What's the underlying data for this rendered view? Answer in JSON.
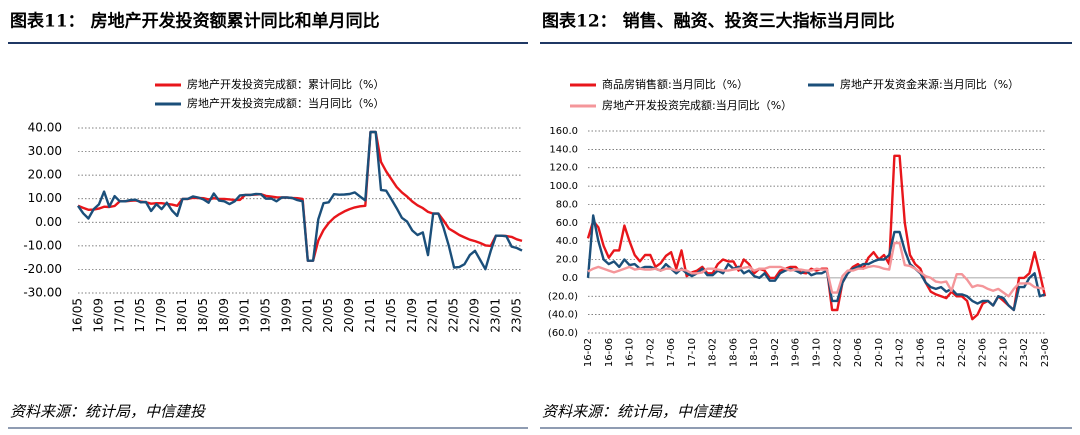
{
  "chart_data": [
    {
      "type": "line",
      "title": "图表11： 房地产开发投资额累计同比和单月同比",
      "source": "资料来源：统计局，中信建投",
      "categories": [
        "16/05",
        null,
        null,
        null,
        "16/09",
        null,
        null,
        null,
        "17/01",
        null,
        null,
        null,
        "17/05",
        null,
        null,
        null,
        "17/09",
        null,
        null,
        null,
        "18/01",
        null,
        null,
        null,
        "18/05",
        null,
        null,
        null,
        "18/09",
        null,
        null,
        null,
        "19/01",
        null,
        null,
        null,
        "19/05",
        null,
        null,
        null,
        "19/09",
        null,
        null,
        null,
        "20/01",
        null,
        null,
        null,
        "20/05",
        null,
        null,
        null,
        "20/09",
        null,
        null,
        null,
        "21/01",
        null,
        null,
        null,
        "21/05",
        null,
        null,
        null,
        "21/09",
        null,
        null,
        null,
        "22/01",
        null,
        null,
        null,
        "22/05",
        null,
        null,
        null,
        "22/09",
        null,
        null,
        null,
        "23/01",
        null,
        null,
        null,
        "23/05",
        null
      ],
      "series": [
        {
          "name": "房地产开发投资完成额：累计同比（%）",
          "color": "#e8161b",
          "values": [
            7.0,
            6.1,
            5.3,
            5.4,
            5.8,
            6.6,
            6.5,
            6.9,
            8.9,
            8.9,
            9.1,
            9.3,
            8.8,
            8.5,
            7.9,
            8.1,
            8.1,
            7.8,
            7.5,
            7.0,
            9.9,
            9.9,
            10.4,
            10.3,
            10.2,
            9.7,
            10.2,
            9.9,
            9.9,
            9.7,
            9.5,
            9.5,
            11.6,
            11.6,
            11.8,
            11.9,
            11.2,
            10.9,
            10.6,
            10.5,
            10.5,
            10.3,
            10.2,
            9.9,
            -16.3,
            -16.3,
            -7.7,
            -3.3,
            -0.3,
            1.9,
            3.4,
            4.6,
            5.6,
            6.3,
            6.8,
            7.0,
            38.3,
            38.3,
            25.6,
            21.6,
            18.3,
            15.0,
            12.7,
            10.9,
            8.8,
            7.2,
            6.0,
            4.4,
            3.7,
            3.7,
            0.7,
            -2.7,
            -4.0,
            -5.4,
            -6.4,
            -7.4,
            -8.0,
            -8.8,
            -9.8,
            -10.0,
            -5.7,
            -5.7,
            -5.8,
            -6.2,
            -7.2,
            -7.9
          ]
        },
        {
          "name": "房地产开发投资完成额：当月同比（%）",
          "color": "#1b4f7a",
          "values": [
            7.0,
            3.8,
            1.6,
            5.6,
            7.6,
            13.0,
            6.6,
            11.1,
            8.9,
            8.9,
            9.4,
            9.6,
            8.5,
            8.6,
            4.8,
            7.7,
            5.6,
            8.3,
            5.0,
            2.7,
            9.9,
            9.9,
            11.0,
            10.5,
            9.7,
            8.3,
            12.2,
            9.2,
            8.9,
            7.7,
            8.9,
            11.4,
            11.6,
            11.6,
            12.0,
            11.9,
            10.0,
            10.1,
            8.9,
            10.5,
            10.5,
            10.3,
            9.4,
            8.9,
            -16.3,
            -16.3,
            1.3,
            8.1,
            8.5,
            11.9,
            11.7,
            11.8,
            12.0,
            12.7,
            10.9,
            9.3,
            38.3,
            38.3,
            13.7,
            13.4,
            9.8,
            6.0,
            1.9,
            0.3,
            -3.5,
            -5.4,
            -4.3,
            -13.9,
            3.7,
            3.7,
            -2.4,
            -10.1,
            -19.2,
            -19.0,
            -17.8,
            -13.9,
            -12.1,
            -16.0,
            -19.9,
            -12.2,
            -5.7,
            -5.7,
            -5.9,
            -10.3,
            -10.9,
            -12.0
          ]
        }
      ],
      "ylim": [
        -30,
        40
      ],
      "yticks": [
        {
          "value": -30,
          "label": "-30.00"
        },
        {
          "value": -20,
          "label": "-20.00"
        },
        {
          "value": -10,
          "label": "-10.00"
        },
        {
          "value": 0,
          "label": "0.00"
        },
        {
          "value": 10,
          "label": "10.00"
        },
        {
          "value": 20,
          "label": "20.00"
        },
        {
          "value": 30,
          "label": "30.00"
        },
        {
          "value": 40,
          "label": "40.00"
        }
      ],
      "grid": true
    },
    {
      "type": "line",
      "title": "图表12： 销售、融资、投资三大指标当月同比",
      "source": "资料来源：统计局，中信建投",
      "categories": [
        "16-02",
        null,
        null,
        null,
        "16-06",
        null,
        null,
        null,
        "16-10",
        null,
        null,
        null,
        "17-02",
        null,
        null,
        null,
        "17-06",
        null,
        null,
        null,
        "17-10",
        null,
        null,
        null,
        "18-02",
        null,
        null,
        null,
        "18-06",
        null,
        null,
        null,
        "18-10",
        null,
        null,
        null,
        "19-02",
        null,
        null,
        null,
        "19-06",
        null,
        null,
        null,
        "19-10",
        null,
        null,
        null,
        "20-02",
        null,
        null,
        null,
        "20-06",
        null,
        null,
        null,
        "20-10",
        null,
        null,
        null,
        "21-02",
        null,
        null,
        null,
        "21-06",
        null,
        null,
        null,
        "21-10",
        null,
        null,
        null,
        "22-02",
        null,
        null,
        null,
        "22-06",
        null,
        null,
        null,
        "22-10",
        null,
        null,
        null,
        "23-02",
        null,
        null,
        null,
        "23-06"
      ],
      "series": [
        {
          "name": "商品房销售额:当月同比（%）",
          "color": "#e8161b",
          "values": [
            43,
            62,
            55,
            35,
            22,
            30,
            30,
            57,
            40,
            25,
            18,
            25,
            25,
            12,
            16,
            24,
            28,
            10,
            30,
            2,
            6,
            8,
            12,
            5,
            5,
            15,
            20,
            18,
            18,
            8,
            20,
            15,
            5,
            10,
            8,
            0,
            0,
            8,
            10,
            12,
            12,
            6,
            5,
            10,
            8,
            10,
            10,
            -35,
            -35,
            -5,
            5,
            12,
            15,
            10,
            22,
            28,
            20,
            25,
            15,
            133,
            133,
            60,
            25,
            15,
            10,
            -5,
            -15,
            -18,
            -20,
            -22,
            -15,
            -20,
            -20,
            -25,
            -45,
            -40,
            -28,
            -25,
            -30,
            -20,
            -25,
            -30,
            -35,
            0,
            0,
            5,
            28,
            5,
            -20
          ]
        },
        {
          "name": "房地产开发资金来源:当月同比（%）",
          "color": "#1b4f7a",
          "values": [
            0,
            68,
            40,
            20,
            15,
            18,
            12,
            20,
            14,
            15,
            10,
            12,
            12,
            10,
            8,
            15,
            10,
            5,
            10,
            5,
            2,
            5,
            10,
            3,
            3,
            8,
            5,
            15,
            10,
            12,
            5,
            8,
            2,
            0,
            5,
            -3,
            -3,
            5,
            8,
            10,
            8,
            5,
            8,
            3,
            5,
            5,
            8,
            -25,
            -25,
            -5,
            5,
            10,
            12,
            15,
            15,
            18,
            20,
            20,
            25,
            50,
            50,
            30,
            15,
            10,
            5,
            -5,
            -10,
            -12,
            -10,
            -15,
            -12,
            -18,
            -18,
            -20,
            -25,
            -28,
            -25,
            -25,
            -30,
            -20,
            -22,
            -30,
            -35,
            -10,
            -10,
            0,
            5,
            -20,
            -18
          ]
        },
        {
          "name": "房地产开发投资完成额:当月同比（%）",
          "color": "#f4969a",
          "values": [
            7,
            10,
            12,
            10,
            8,
            6,
            8,
            10,
            12,
            9,
            10,
            9,
            9,
            10,
            8,
            10,
            10,
            8,
            9,
            8,
            5,
            5,
            6,
            10,
            10,
            9,
            8,
            8,
            9,
            10,
            11,
            12,
            8,
            10,
            10,
            12,
            12,
            12,
            10,
            8,
            9,
            9,
            8,
            8,
            10,
            9,
            9,
            -16,
            -16,
            2,
            8,
            8,
            10,
            10,
            12,
            13,
            12,
            10,
            9,
            38,
            38,
            14,
            13,
            10,
            6,
            2,
            0,
            -4,
            -5,
            -4,
            -14,
            4,
            4,
            -2,
            -10,
            -8,
            -9,
            -12,
            -14,
            -12,
            -16,
            -20,
            -12,
            -6,
            -6,
            -6,
            -10,
            -11,
            -12
          ]
        }
      ],
      "ylim": [
        -60,
        160
      ],
      "yticks": [
        {
          "value": -60,
          "label": "(60.0)"
        },
        {
          "value": -40,
          "label": "(40.0)"
        },
        {
          "value": -20,
          "label": "(20.0)"
        },
        {
          "value": 0,
          "label": "0.0"
        },
        {
          "value": 20,
          "label": "20.0"
        },
        {
          "value": 40,
          "label": "40.0"
        },
        {
          "value": 60,
          "label": "60.0"
        },
        {
          "value": 80,
          "label": "80.0"
        },
        {
          "value": 100,
          "label": "100.0"
        },
        {
          "value": 120,
          "label": "120.0"
        },
        {
          "value": 140,
          "label": "140.0"
        },
        {
          "value": 160,
          "label": "160.0"
        }
      ],
      "grid": true
    }
  ]
}
